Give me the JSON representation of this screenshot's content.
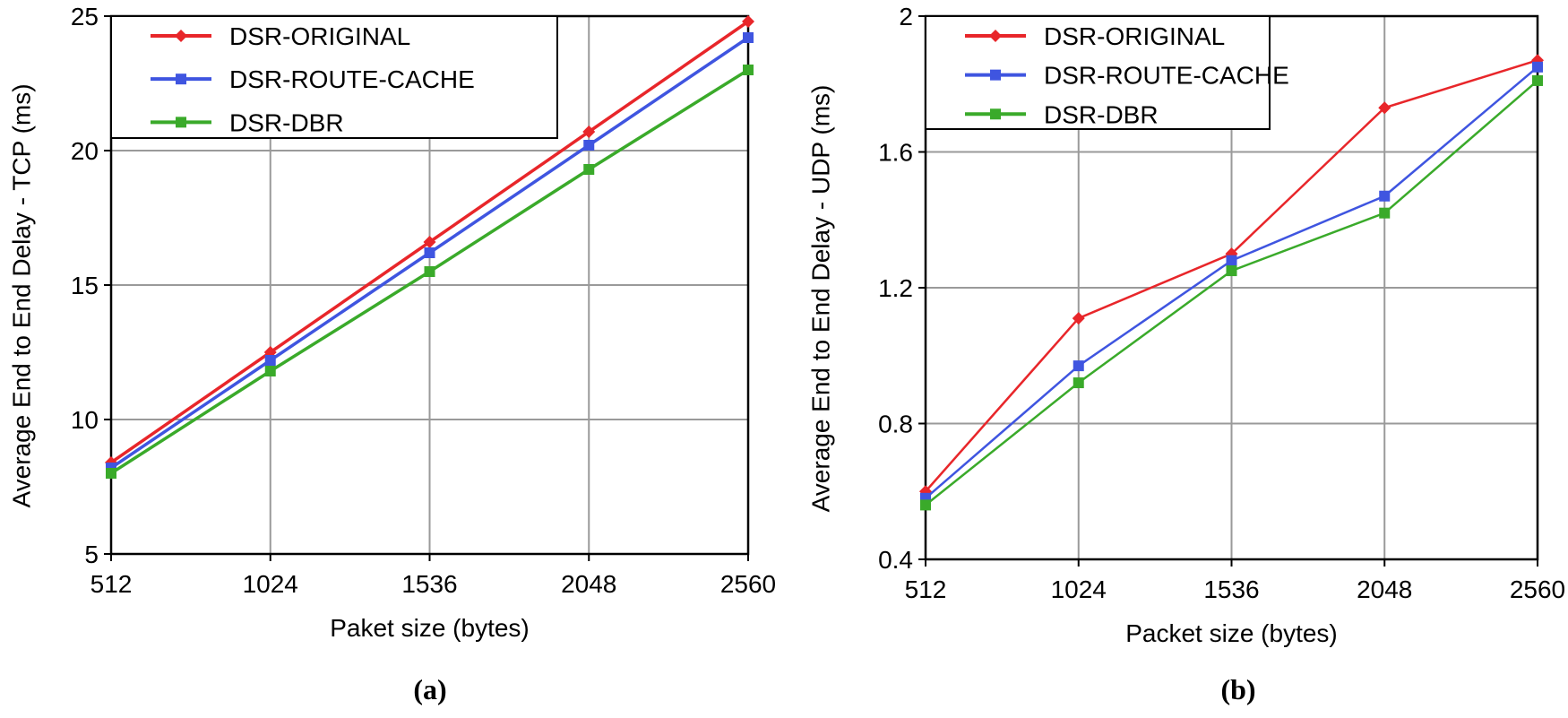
{
  "chart_data": [
    {
      "type": "line",
      "panel_label": "(a)",
      "xlabel": "Paket size (bytes)",
      "ylabel": "Average End to End Delay - TCP (ms)",
      "categories": [
        "512",
        "1024",
        "1536",
        "2048",
        "2560"
      ],
      "ylim": [
        5,
        25
      ],
      "yticks": [
        "5",
        "10",
        "15",
        "20",
        "25"
      ],
      "grid": true,
      "legend_position": "top-left",
      "series": [
        {
          "name": "DSR-ORIGINAL",
          "color": "#e8262a",
          "marker": "diamond",
          "values": [
            8.4,
            12.5,
            16.6,
            20.7,
            24.8
          ]
        },
        {
          "name": "DSR-ROUTE-CACHE",
          "color": "#3f55e0",
          "marker": "square",
          "values": [
            8.2,
            12.2,
            16.2,
            20.2,
            24.2
          ]
        },
        {
          "name": "DSR-DBR",
          "color": "#3aaa2a",
          "marker": "square",
          "values": [
            8.0,
            11.8,
            15.5,
            19.3,
            23.0
          ]
        }
      ]
    },
    {
      "type": "line",
      "panel_label": "(b)",
      "xlabel": "Packet size (bytes)",
      "ylabel": "Average End to End Delay  - UDP (ms)",
      "categories": [
        "512",
        "1024",
        "1536",
        "2048",
        "2560"
      ],
      "ylim": [
        0.4,
        2.0
      ],
      "yticks": [
        "0.4",
        "0.8",
        "1.2",
        "1.6",
        "2"
      ],
      "grid": true,
      "legend_position": "top-left",
      "series": [
        {
          "name": "DSR-ORIGINAL",
          "color": "#e8262a",
          "marker": "diamond",
          "values": [
            0.6,
            1.11,
            1.3,
            1.73,
            1.87
          ]
        },
        {
          "name": "DSR-ROUTE-CACHE",
          "color": "#3f55e0",
          "marker": "square",
          "values": [
            0.58,
            0.97,
            1.28,
            1.47,
            1.85
          ]
        },
        {
          "name": "DSR-DBR",
          "color": "#3aaa2a",
          "marker": "square",
          "values": [
            0.56,
            0.92,
            1.25,
            1.42,
            1.81
          ]
        }
      ]
    }
  ]
}
